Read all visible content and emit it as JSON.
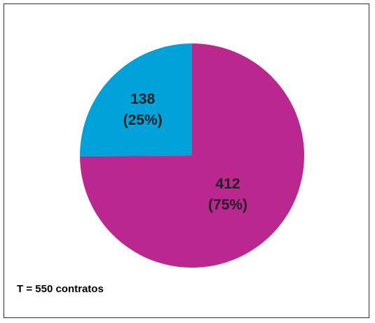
{
  "chart_data": {
    "type": "pie",
    "slices": [
      {
        "value": 412,
        "percent_label": "(75%)",
        "color": "#b9278f"
      },
      {
        "value": 138,
        "percent_label": "(25%)",
        "color": "#00a3d9"
      }
    ],
    "legend": "none",
    "note": "T = 550 contratos"
  }
}
